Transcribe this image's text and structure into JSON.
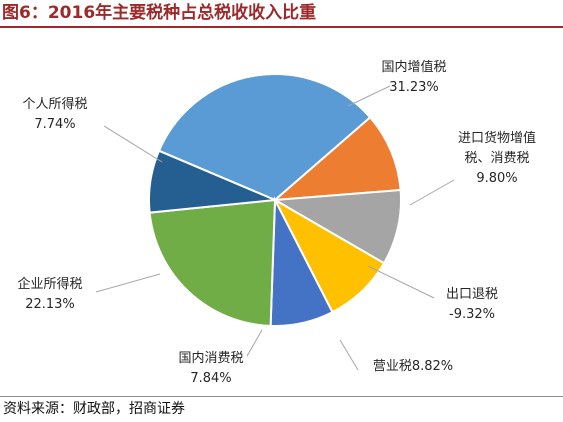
{
  "header": {
    "title": "图6：2016年主要税种占总税收收入比重",
    "title_color": "#9c2a2a"
  },
  "source": {
    "text": "资料来源：财政部，招商证券"
  },
  "chart_data": {
    "type": "pie",
    "title": "图6：2016年主要税种占总税收收入比重",
    "slices": [
      {
        "label": "国内增值税",
        "value": 31.23,
        "value_label": "31.23%",
        "color": "#5b9bd5"
      },
      {
        "label": "进口货物增值税、消费税",
        "label_lines": [
          "进口货物增值",
          "税、消费税"
        ],
        "value": 9.8,
        "value_label": "9.80%",
        "color": "#ed7d31"
      },
      {
        "label": "出口退税",
        "value": 9.32,
        "value_label": "-9.32%",
        "color": "#a5a5a5"
      },
      {
        "label": "营业税",
        "value": 8.82,
        "value_label": "营业税8.82%",
        "color": "#ffc000"
      },
      {
        "label": "国内消费税",
        "value": 7.84,
        "value_label": "7.84%",
        "color": "#4472c4"
      },
      {
        "label": "企业所得税",
        "value": 22.13,
        "value_label": "22.13%",
        "color": "#70ad47"
      },
      {
        "label": "个人所得税",
        "value": 7.74,
        "value_label": "7.74%",
        "color": "#255e91"
      }
    ],
    "legend": "none"
  }
}
